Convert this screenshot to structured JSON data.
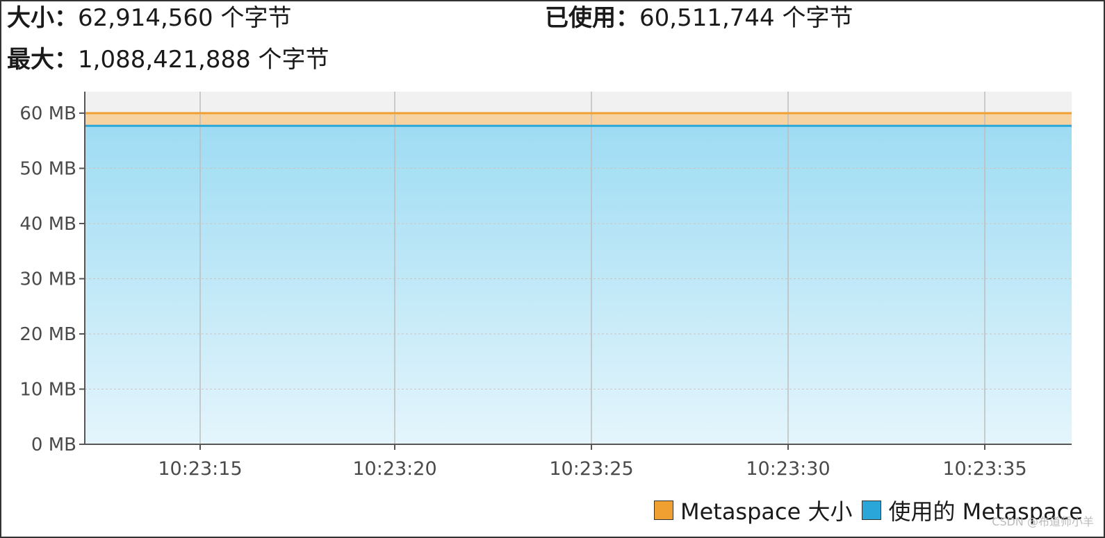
{
  "stats": {
    "size_label": "大小：",
    "size_value": "62,914,560 个字节",
    "used_label": "已使用：",
    "used_value": "60,511,744 个字节",
    "max_label": "最大：",
    "max_value": "1,088,421,888 个字节"
  },
  "chart_data": {
    "type": "area",
    "xlabel": "",
    "ylabel": "",
    "x_ticks": [
      "10:23:15",
      "10:23:20",
      "10:23:25",
      "10:23:30",
      "10:23:35"
    ],
    "y_ticks": [
      "0 MB",
      "10 MB",
      "20 MB",
      "30 MB",
      "40 MB",
      "50 MB",
      "60 MB"
    ],
    "ylim": [
      0,
      60
    ],
    "grid": true,
    "legend_position": "bottom-right",
    "series": [
      {
        "name": "Metaspace 大小",
        "color": "#f0a030",
        "values": [
          60,
          60,
          60,
          60,
          60
        ]
      },
      {
        "name": "使用的 Metaspace",
        "color": "#2aa6d8",
        "values": [
          57.7,
          57.7,
          57.7,
          57.7,
          57.7
        ]
      }
    ]
  },
  "watermark": "CSDN @布道师小羊"
}
